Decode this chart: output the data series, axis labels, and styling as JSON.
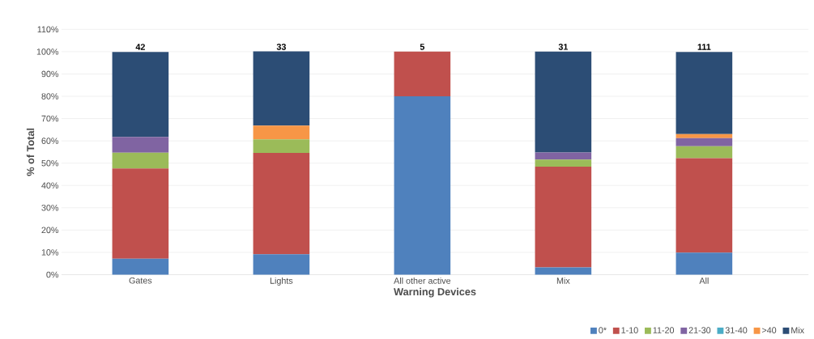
{
  "chart_data": {
    "type": "bar",
    "stacked": true,
    "xlabel": "Warning Devices",
    "ylabel": "% of Total",
    "categories": [
      "Gates",
      "Lights",
      "All other active",
      "Mix",
      "All"
    ],
    "series": [
      {
        "name": "0*",
        "color": "#4f81bd",
        "values": [
          7.1,
          9.1,
          80,
          3.2,
          9.9
        ]
      },
      {
        "name": "1-10",
        "color": "#c0504d",
        "values": [
          40.5,
          45.5,
          20,
          45.2,
          42.3
        ]
      },
      {
        "name": "11-20",
        "color": "#9bbb59",
        "values": [
          7.1,
          6.1,
          0,
          3.2,
          5.4
        ]
      },
      {
        "name": "21-30",
        "color": "#8064a2",
        "values": [
          7.1,
          0,
          0,
          3.2,
          3.6
        ]
      },
      {
        "name": "31-40",
        "color": "#4bacc6",
        "values": [
          0,
          0,
          0,
          0,
          0
        ]
      },
      {
        "name": ">40",
        "color": "#f79646",
        "values": [
          0,
          6.1,
          0,
          0,
          1.8
        ]
      },
      {
        "name": "Mix",
        "color": "#2c4d75",
        "values": [
          38.1,
          33.3,
          0,
          45.2,
          36.9
        ]
      }
    ],
    "annotations": [
      {
        "text": "42",
        "x": "Gates",
        "y": 100
      },
      {
        "text": "33",
        "x": "Lights",
        "y": 100
      },
      {
        "text": "5",
        "x": "All other active",
        "y": 100
      },
      {
        "text": "31",
        "x": "Mix",
        "y": 100
      },
      {
        "text": "111",
        "x": "All",
        "y": 100
      }
    ],
    "ylim": [
      0,
      110
    ],
    "yticks": [
      {
        "value": 0,
        "label": "0%"
      },
      {
        "value": 10,
        "label": "10%"
      },
      {
        "value": 20,
        "label": "20%"
      },
      {
        "value": 30,
        "label": "30%"
      },
      {
        "value": 40,
        "label": "40%"
      },
      {
        "value": 50,
        "label": "50%"
      },
      {
        "value": 60,
        "label": "60%"
      },
      {
        "value": 70,
        "label": "70%"
      },
      {
        "value": 80,
        "label": "80%"
      },
      {
        "value": 90,
        "label": "90%"
      },
      {
        "value": 100,
        "label": "100%"
      },
      {
        "value": 110,
        "label": "110%"
      }
    ],
    "grid": "y",
    "legend": "bottom right"
  }
}
